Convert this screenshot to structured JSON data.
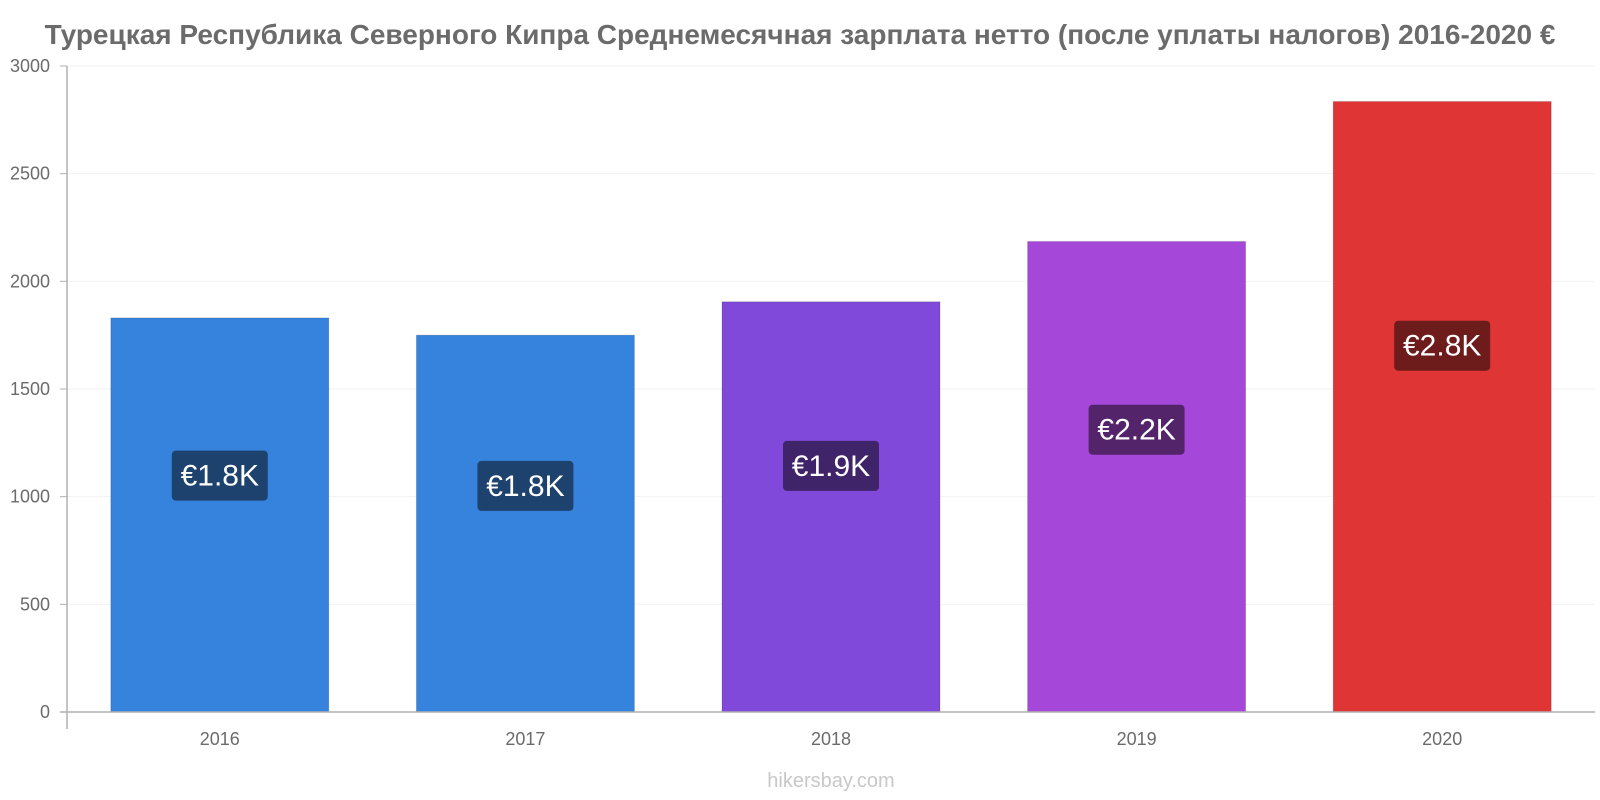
{
  "chart_data": {
    "type": "bar",
    "title": "Турецкая Республика Северного Кипра Среднемесячная зарплата нетто (после уплаты налогов) 2016-2020 €",
    "xlabel": "",
    "ylabel": "",
    "categories": [
      "2016",
      "2017",
      "2018",
      "2019",
      "2020"
    ],
    "values": [
      1830,
      1750,
      1905,
      2185,
      2835
    ],
    "data_labels": [
      "€1.8K",
      "€1.8K",
      "€1.9K",
      "€2.2K",
      "€2.8K"
    ],
    "bar_colors": [
      "#3683dd",
      "#3683dd",
      "#8049d9",
      "#a548d9",
      "#e03535"
    ],
    "label_box_colors": [
      "#1e426e",
      "#1e426e",
      "#3f246a",
      "#53246a",
      "#6d1b1b"
    ],
    "ylim": [
      0,
      3000
    ],
    "yticks": [
      0,
      500,
      1000,
      1500,
      2000,
      2500,
      3000
    ],
    "grid": true,
    "legend": "none"
  },
  "watermark": "hikersbay.com",
  "colors": {
    "axis": "#b0b0b0",
    "grid": "#f2f2f2",
    "text": "#6b6b6b",
    "watermark": "#c8c8c8"
  }
}
